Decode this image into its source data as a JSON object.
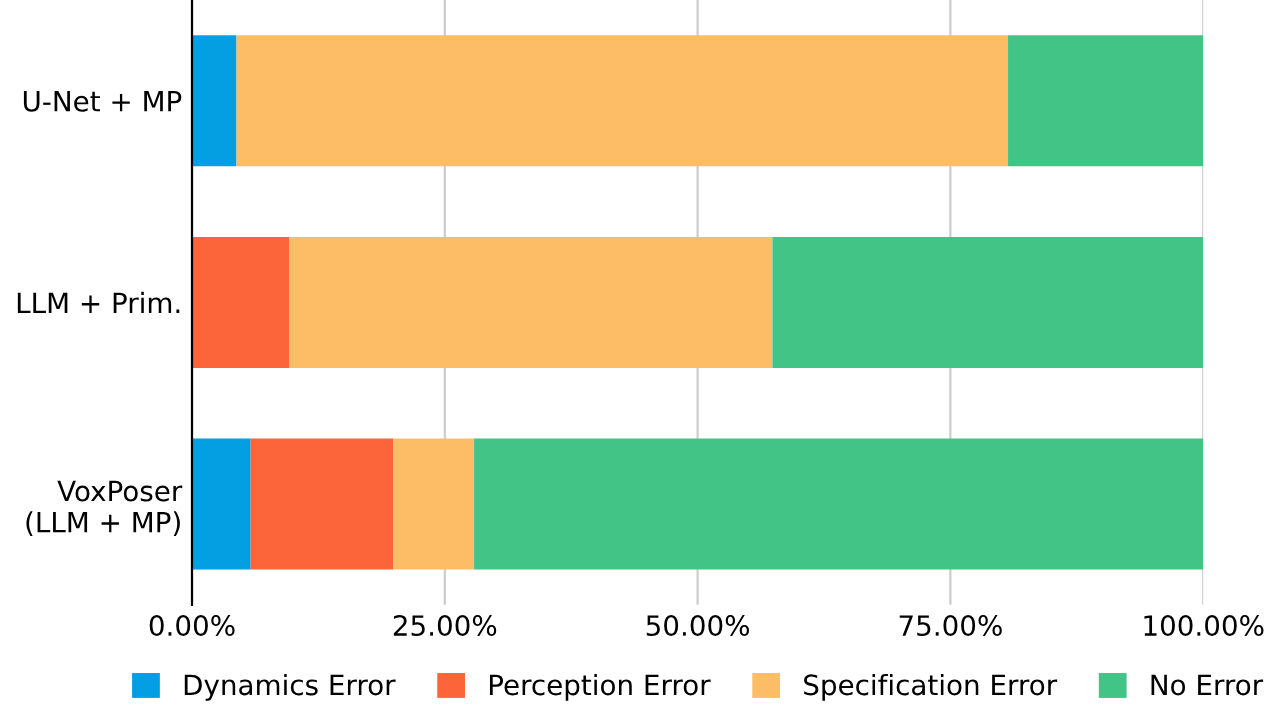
{
  "chart_data": {
    "type": "bar",
    "orientation": "horizontal",
    "stacked": true,
    "categories": [
      "U-Net + MP",
      "LLM + Prim.",
      "VoxPoser\n(LLM + MP)"
    ],
    "series": [
      {
        "name": "Dynamics Error",
        "color": "#049fe2",
        "values": [
          4.4,
          0,
          5.8
        ]
      },
      {
        "name": "Perception Error",
        "color": "#fc6539",
        "values": [
          0,
          9.6,
          14.1
        ]
      },
      {
        "name": "Specification Error",
        "color": "#fcbd66",
        "values": [
          76.3,
          47.8,
          8.0
        ]
      },
      {
        "name": "No Error",
        "color": "#41c485",
        "values": [
          19.3,
          42.6,
          72.1
        ]
      }
    ],
    "xlim": [
      0,
      100
    ],
    "xticks": [
      {
        "value": 0,
        "label": "0.00%"
      },
      {
        "value": 25,
        "label": "25.00%"
      },
      {
        "value": 50,
        "label": "50.00%"
      },
      {
        "value": 75,
        "label": "75.00%"
      },
      {
        "value": 100,
        "label": "100.00%"
      }
    ],
    "grid": "x",
    "legend": "bottom"
  }
}
